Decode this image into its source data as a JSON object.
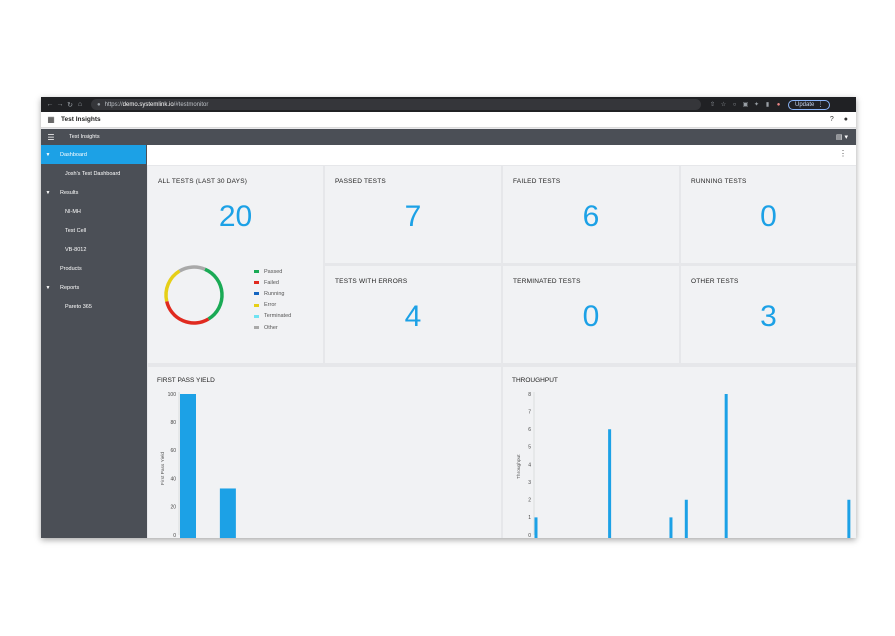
{
  "browser": {
    "url_scheme": "https://",
    "url_host": "demo.systemlink.io",
    "url_path": "/#testmonitor",
    "update_label": "Update"
  },
  "app": {
    "title": "Test Insights",
    "help_icon": "?"
  },
  "toolbar": {
    "breadcrumb": "Test Insights"
  },
  "sidebar": {
    "items": [
      {
        "label": "Dashboard",
        "level": 0,
        "caret": true,
        "active": true
      },
      {
        "label": "Josh's Test Dashboard",
        "level": 1
      },
      {
        "label": "Results",
        "level": 0,
        "caret": true
      },
      {
        "label": "NI-MH",
        "level": 1
      },
      {
        "label": "Test Cell",
        "level": 1
      },
      {
        "label": "VB-8012",
        "level": 1
      },
      {
        "label": "Products",
        "level": 0,
        "caret": false
      },
      {
        "label": "Reports",
        "level": 0,
        "caret": true
      },
      {
        "label": "Pareto 365",
        "level": 1
      }
    ]
  },
  "tiles": {
    "all_tests": {
      "title": "ALL TESTS (LAST 30 DAYS)",
      "value": "20"
    },
    "passed": {
      "title": "PASSED TESTS",
      "value": "7"
    },
    "failed": {
      "title": "FAILED TESTS",
      "value": "6"
    },
    "running": {
      "title": "RUNNING TESTS",
      "value": "0"
    },
    "errors": {
      "title": "TESTS WITH ERRORS",
      "value": "4"
    },
    "terminated": {
      "title": "TERMINATED TESTS",
      "value": "0"
    },
    "other": {
      "title": "OTHER TESTS",
      "value": "3"
    }
  },
  "legend": [
    {
      "label": "Passed",
      "color": "#1aaa55"
    },
    {
      "label": "Failed",
      "color": "#e02a1f"
    },
    {
      "label": "Running",
      "color": "#1565c0"
    },
    {
      "label": "Error",
      "color": "#e6cf17"
    },
    {
      "label": "Terminated",
      "color": "#6fe3f2"
    },
    {
      "label": "Other",
      "color": "#a9a9a9"
    }
  ],
  "donut_data": {
    "Passed": 7,
    "Failed": 6,
    "Running": 0,
    "Error": 4,
    "Terminated": 0,
    "Other": 3
  },
  "chart_data": [
    {
      "type": "bar",
      "title": "FIRST PASS YIELD",
      "ylabel": "First Pass Yield",
      "ylim": [
        0,
        100
      ],
      "yticks": [
        0,
        20,
        40,
        60,
        80,
        100
      ],
      "bars": [
        {
          "x": 0,
          "value": 100
        },
        {
          "x": 1,
          "value": 33
        }
      ],
      "x_count": 8,
      "color": "#1ca1e6"
    },
    {
      "type": "bar",
      "title": "THROUGHPUT",
      "ylabel": "Throughput",
      "ylim": [
        0,
        8
      ],
      "yticks": [
        0,
        1,
        2,
        3,
        4,
        5,
        6,
        7,
        8
      ],
      "bars": [
        {
          "x": 0,
          "value": 1
        },
        {
          "x": 12,
          "value": 6
        },
        {
          "x": 22,
          "value": 1
        },
        {
          "x": 24.5,
          "value": 2
        },
        {
          "x": 31,
          "value": 8
        },
        {
          "x": 51,
          "value": 2
        }
      ],
      "x_count": 52,
      "color": "#1ca1e6"
    }
  ]
}
